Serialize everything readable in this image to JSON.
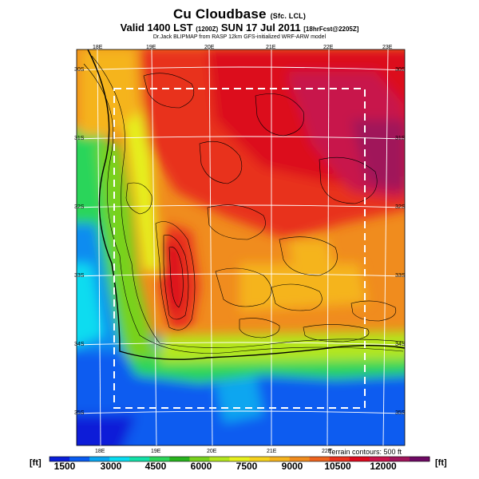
{
  "header": {
    "title": "Cu Cloudbase",
    "title_suffix": "(Sfc. LCL)",
    "subtitle": "Valid 1400 LST",
    "subtitle_utc": "(1200Z)",
    "subtitle_date": "SUN 17 Jul 2011",
    "subtitle_run": "[18hrFcst@2205Z]",
    "credit": "Dr.Jack BLIPMAP from RASP 12km GFS-initialized WRF-ARW model"
  },
  "map": {
    "top_lon_labels": [
      "18E",
      "19E",
      "20E",
      "21E",
      "22E",
      "23E"
    ],
    "bottom_lon_labels": [
      "18E",
      "19E",
      "20E",
      "21E",
      "22E"
    ],
    "left_lat_labels": [
      "30S",
      "31S",
      "32S",
      "33S",
      "34S",
      "35S"
    ],
    "right_lat_labels": [
      "30S",
      "31S",
      "32S",
      "33S",
      "34S",
      "35S"
    ],
    "contour_note": "Terrain contours: 500 ft"
  },
  "legend": {
    "units_left": "[ft]",
    "units_right": "[ft]",
    "ticks": [
      "1500",
      "3000",
      "4500",
      "6000",
      "7500",
      "9000",
      "10500",
      "12000"
    ],
    "colors": [
      "#0a1fd8",
      "#0a5cf0",
      "#0aa6f0",
      "#0adcf0",
      "#14e0a8",
      "#2cd55a",
      "#28b41e",
      "#78d21e",
      "#b4e61e",
      "#e6f01e",
      "#f5d21e",
      "#f5b41e",
      "#f08c1e",
      "#ee641e",
      "#e8321e",
      "#dc0a1e",
      "#c8144b",
      "#a0145a",
      "#6e0a64"
    ]
  }
}
